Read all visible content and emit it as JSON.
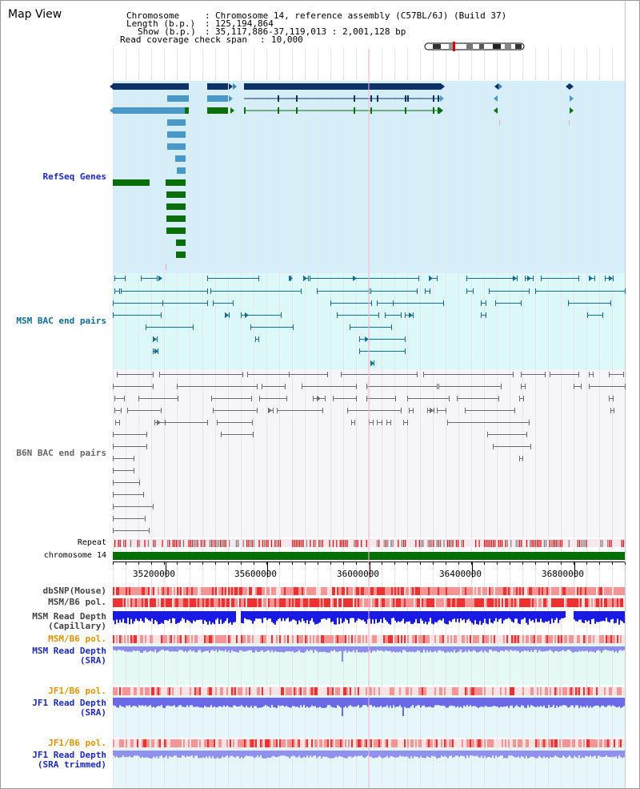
{
  "view_title": "Map View",
  "info": {
    "chromosome_label": "Chromosome",
    "chromosome_value": "Chromosome 14, reference assembly (C57BL/6J) (Build 37)",
    "length_label": "Length (b.p.)",
    "length_value": "125,194,864",
    "show_label": "Show (b.p.)",
    "show_value": "35,117,886-37,119,013 : 2,001,128 bp",
    "span_label": "Read coverage check span",
    "span_value": "10,000"
  },
  "tracks": {
    "refseq": "RefSeq Genes",
    "msm_bac": "MSM BAC end pairs",
    "b6n_bac": "B6N BAC end pairs",
    "repeat": "Repeat",
    "chromosome": "chromosome 14",
    "dbsnp": "dbSNP(Mouse)",
    "msm_b6_pol": "MSM/B6 pol.",
    "msm_depth_cap_1": "MSM Read Depth",
    "msm_depth_cap_2": "(Capillary)",
    "msm_b6_pol_2": "MSM/B6 pol.",
    "msm_depth_sra_1": "MSM Read Depth",
    "msm_depth_sra_2": "(SRA)",
    "jf1_b6_pol": "JF1/B6 pol.",
    "jf1_depth_sra_1": "JF1 Read Depth",
    "jf1_depth_sra_2": "(SRA)",
    "jf1_b6_pol_2": "JF1/B6 pol.",
    "jf1_depth_trim_1": "JF1 Read Depth",
    "jf1_depth_trim_2": "(SRA trimmed)"
  },
  "axis_ticks": [
    "35200000",
    "35600000",
    "36000000",
    "36400000",
    "36800000"
  ],
  "colors": {
    "refseq_bg": "#d6eef9",
    "msm_bg": "#dcf8f8",
    "b6n_bg": "#f5f5fa",
    "depth_bg": "#e6faf5",
    "refseq_label": "#1d2bb3",
    "msm_label": "#0f6e93",
    "b6n_label": "#666666",
    "pol_label": "#e09200",
    "depth_label": "#1d2bb3",
    "gene_dark": "#0d3366",
    "gene_light": "#4a98c7",
    "gene_green": "#0a6e0a"
  }
}
